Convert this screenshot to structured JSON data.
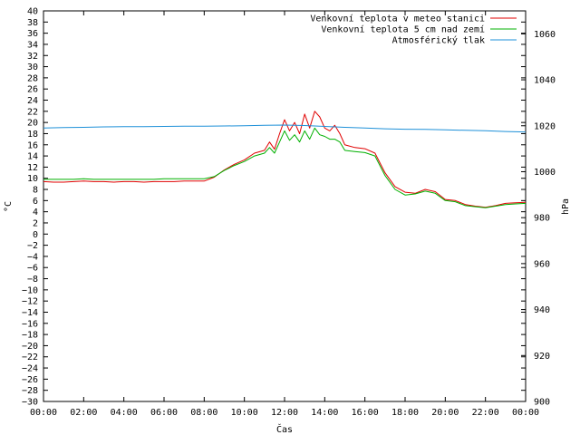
{
  "chart_data": {
    "type": "line",
    "title": "",
    "xlabel": "Čas",
    "ylabel_left": "°C",
    "ylabel_right": "hPa",
    "xlim": [
      "00:00",
      "24:00"
    ],
    "x_tick_labels": [
      "00:00",
      "02:00",
      "04:00",
      "06:00",
      "08:00",
      "10:00",
      "12:00",
      "14:00",
      "16:00",
      "18:00",
      "20:00",
      "22:00",
      "00:00"
    ],
    "ylim_left": [
      -30,
      40
    ],
    "ylim_right": [
      900,
      1070
    ],
    "y_left_tick_labels": [
      "40",
      "38",
      "36",
      "34",
      "32",
      "30",
      "28",
      "26",
      "24",
      "22",
      "20",
      "18",
      "16",
      "14",
      "12",
      "10",
      "8",
      "6",
      "4",
      "2",
      "0",
      "−2",
      "−4",
      "−6",
      "−8",
      "−10",
      "−12",
      "−14",
      "−16",
      "−18",
      "−20",
      "−22",
      "−24",
      "−26",
      "−28",
      "−30"
    ],
    "y_right_tick_labels": [
      "1060",
      "1040",
      "1020",
      "1000",
      "980",
      "960",
      "940",
      "920",
      "900"
    ],
    "grid": false,
    "legend_placement": "top-right",
    "series": [
      {
        "name": "Venkovní teplota v meteo stanici",
        "color": "#e00000",
        "axis": "left",
        "x": [
          0,
          0.5,
          1,
          1.5,
          2,
          2.5,
          3,
          3.5,
          4,
          4.5,
          5,
          5.5,
          6,
          6.5,
          7,
          7.5,
          8,
          8.5,
          9,
          9.5,
          10,
          10.5,
          11,
          11.25,
          11.5,
          11.75,
          12,
          12.25,
          12.5,
          12.75,
          13,
          13.25,
          13.5,
          13.75,
          14,
          14.25,
          14.5,
          14.75,
          15,
          15.5,
          16,
          16.5,
          17,
          17.5,
          18,
          18.5,
          19,
          19.5,
          20,
          20.5,
          21,
          21.5,
          22,
          22.5,
          23,
          23.5,
          24
        ],
        "y": [
          9.4,
          9.3,
          9.3,
          9.4,
          9.5,
          9.4,
          9.4,
          9.3,
          9.4,
          9.4,
          9.3,
          9.4,
          9.4,
          9.4,
          9.5,
          9.5,
          9.5,
          10.2,
          11.5,
          12.5,
          13.3,
          14.5,
          15.0,
          16.5,
          15.2,
          18.0,
          20.5,
          18.5,
          20.0,
          18.0,
          21.5,
          19.0,
          22.0,
          21.0,
          19.0,
          18.5,
          19.5,
          18.0,
          16.0,
          15.5,
          15.3,
          14.5,
          11.0,
          8.5,
          7.5,
          7.3,
          8.0,
          7.6,
          6.2,
          6.0,
          5.3,
          5.0,
          4.8,
          5.1,
          5.5,
          5.6,
          5.7
        ]
      },
      {
        "name": "Venkovní teplota 5 cm nad zemí",
        "color": "#00b000",
        "axis": "left",
        "x": [
          0,
          0.5,
          1,
          1.5,
          2,
          2.5,
          3,
          3.5,
          4,
          4.5,
          5,
          5.5,
          6,
          6.5,
          7,
          7.5,
          8,
          8.5,
          9,
          9.5,
          10,
          10.5,
          11,
          11.25,
          11.5,
          11.75,
          12,
          12.25,
          12.5,
          12.75,
          13,
          13.25,
          13.5,
          13.75,
          14,
          14.25,
          14.5,
          14.75,
          15,
          15.5,
          16,
          16.5,
          17,
          17.5,
          18,
          18.5,
          19,
          19.5,
          20,
          20.5,
          21,
          21.5,
          22,
          22.5,
          23,
          23.5,
          24
        ],
        "y": [
          9.8,
          9.8,
          9.8,
          9.8,
          9.9,
          9.8,
          9.8,
          9.8,
          9.8,
          9.8,
          9.8,
          9.8,
          9.9,
          9.9,
          9.9,
          9.9,
          9.9,
          10.3,
          11.4,
          12.3,
          13.0,
          14.0,
          14.5,
          15.5,
          14.5,
          16.5,
          18.5,
          16.8,
          17.8,
          16.5,
          18.5,
          17.0,
          19.0,
          17.8,
          17.5,
          17.0,
          17.0,
          16.5,
          15.0,
          14.8,
          14.6,
          14.0,
          10.5,
          8.0,
          7.0,
          7.2,
          7.7,
          7.3,
          6.0,
          5.8,
          5.1,
          4.9,
          4.7,
          5.0,
          5.3,
          5.4,
          5.5
        ]
      },
      {
        "name": "Atmosférický tlak",
        "color": "#1e90d8",
        "axis": "right",
        "x": [
          0,
          1,
          2,
          3,
          4,
          5,
          6,
          7,
          8,
          9,
          10,
          11,
          12,
          13,
          14,
          15,
          16,
          17,
          18,
          19,
          20,
          21,
          22,
          23,
          24
        ],
        "y": [
          1019.0,
          1019.2,
          1019.3,
          1019.5,
          1019.6,
          1019.6,
          1019.7,
          1019.8,
          1019.8,
          1019.9,
          1020.0,
          1020.2,
          1020.3,
          1020.1,
          1019.7,
          1019.3,
          1019.0,
          1018.7,
          1018.5,
          1018.4,
          1018.2,
          1018.0,
          1017.8,
          1017.5,
          1017.3
        ]
      }
    ]
  }
}
